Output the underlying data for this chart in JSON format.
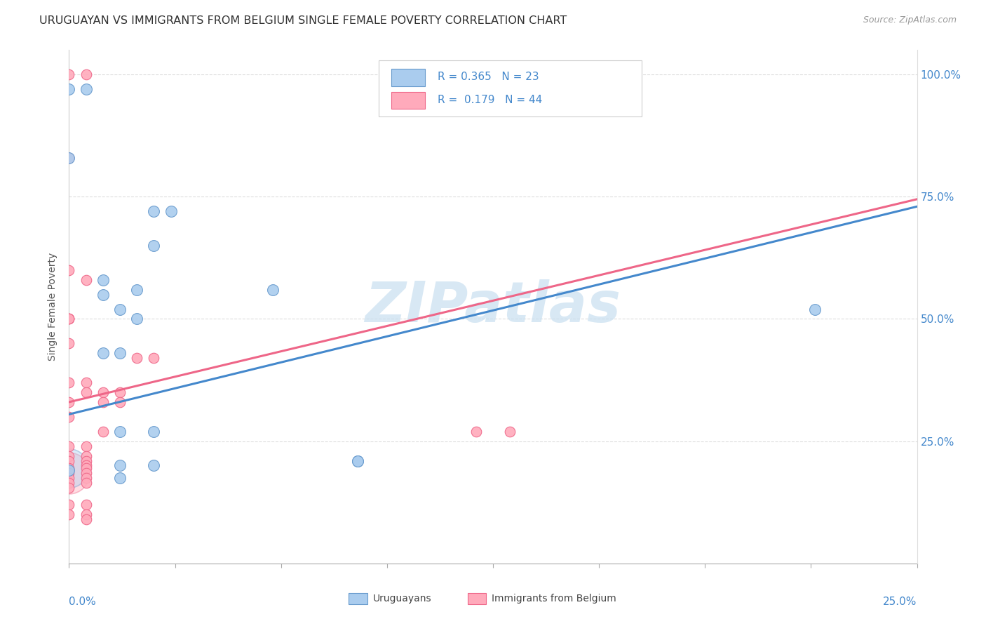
{
  "title": "URUGUAYAN VS IMMIGRANTS FROM BELGIUM SINGLE FEMALE POVERTY CORRELATION CHART",
  "source": "Source: ZipAtlas.com",
  "ylabel": "Single Female Poverty",
  "xmin": 0.0,
  "xmax": 0.25,
  "ymin": 0.0,
  "ymax": 1.05,
  "yticks": [
    0.0,
    0.25,
    0.5,
    0.75,
    1.0
  ],
  "ytick_labels": [
    "",
    "25.0%",
    "50.0%",
    "75.0%",
    "100.0%"
  ],
  "uruguayan_color_fill": "#aaccee",
  "uruguayan_color_edge": "#6699cc",
  "belgium_color_fill": "#ffaabb",
  "belgium_color_edge": "#ee6688",
  "uru_line_color": "#4488cc",
  "bel_line_color": "#ee6688",
  "watermark_color": "#c8dff0",
  "legend_R1": "R = 0.365",
  "legend_N1": "N = 23",
  "legend_R2": "R =  0.179",
  "legend_N2": "N = 44",
  "uruguayan_points": [
    [
      0.0,
      0.97
    ],
    [
      0.005,
      0.97
    ],
    [
      0.0,
      0.83
    ],
    [
      0.025,
      0.72
    ],
    [
      0.03,
      0.72
    ],
    [
      0.025,
      0.65
    ],
    [
      0.01,
      0.58
    ],
    [
      0.02,
      0.56
    ],
    [
      0.06,
      0.56
    ],
    [
      0.01,
      0.55
    ],
    [
      0.015,
      0.52
    ],
    [
      0.22,
      0.52
    ],
    [
      0.02,
      0.5
    ],
    [
      0.01,
      0.43
    ],
    [
      0.015,
      0.43
    ],
    [
      0.025,
      0.27
    ],
    [
      0.015,
      0.27
    ],
    [
      0.085,
      0.21
    ],
    [
      0.085,
      0.21
    ],
    [
      0.025,
      0.2
    ],
    [
      0.015,
      0.2
    ],
    [
      0.015,
      0.175
    ],
    [
      0.0,
      0.19
    ]
  ],
  "belgium_points": [
    [
      0.0,
      1.0
    ],
    [
      0.005,
      1.0
    ],
    [
      0.0,
      0.83
    ],
    [
      0.0,
      0.6
    ],
    [
      0.005,
      0.58
    ],
    [
      0.0,
      0.45
    ],
    [
      0.0,
      0.37
    ],
    [
      0.005,
      0.37
    ],
    [
      0.0,
      0.33
    ],
    [
      0.005,
      0.35
    ],
    [
      0.0,
      0.3
    ],
    [
      0.0,
      0.24
    ],
    [
      0.005,
      0.24
    ],
    [
      0.0,
      0.22
    ],
    [
      0.005,
      0.22
    ],
    [
      0.0,
      0.21
    ],
    [
      0.005,
      0.21
    ],
    [
      0.005,
      0.2
    ],
    [
      0.0,
      0.195
    ],
    [
      0.005,
      0.195
    ],
    [
      0.0,
      0.185
    ],
    [
      0.005,
      0.185
    ],
    [
      0.0,
      0.175
    ],
    [
      0.005,
      0.175
    ],
    [
      0.0,
      0.165
    ],
    [
      0.005,
      0.165
    ],
    [
      0.0,
      0.155
    ],
    [
      0.005,
      0.12
    ],
    [
      0.0,
      0.12
    ],
    [
      0.005,
      0.1
    ],
    [
      0.0,
      0.1
    ],
    [
      0.005,
      0.09
    ],
    [
      0.01,
      0.35
    ],
    [
      0.01,
      0.33
    ],
    [
      0.01,
      0.27
    ],
    [
      0.015,
      0.35
    ],
    [
      0.015,
      0.33
    ],
    [
      0.02,
      0.42
    ],
    [
      0.025,
      0.42
    ],
    [
      0.12,
      0.27
    ],
    [
      0.13,
      0.27
    ],
    [
      0.0,
      0.5
    ],
    [
      0.0,
      0.5
    ],
    [
      0.0,
      0.5
    ]
  ],
  "uru_line_x": [
    0.0,
    0.25
  ],
  "uru_line_y": [
    0.305,
    0.73
  ],
  "bel_line_x": [
    0.0,
    0.25
  ],
  "bel_line_y": [
    0.33,
    0.745
  ]
}
